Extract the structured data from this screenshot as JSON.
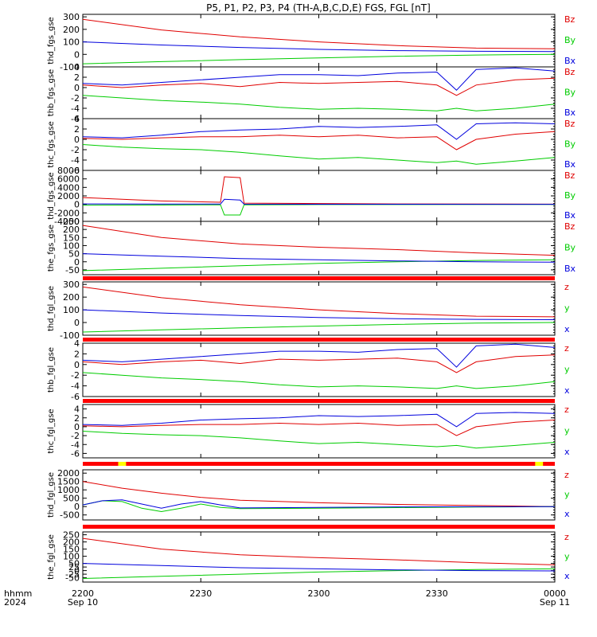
{
  "title": "P5, P1, P2, P3, P4 (TH-A,B,C,D,E) FGS, FGL [nT]",
  "colors": {
    "z": "#e00000",
    "y": "#00cc00",
    "x": "#0000dd",
    "bar_red": "#ff0000",
    "bar_yellow": "#ffff00",
    "axis": "#000000"
  },
  "time_axis": {
    "row1_label": "hhmm",
    "row2_label": "2024",
    "ticks": [
      {
        "hhmm": "2200",
        "t": 0,
        "date": "Sep 10"
      },
      {
        "hhmm": "2230",
        "t": 30,
        "date": ""
      },
      {
        "hhmm": "2300",
        "t": 60,
        "date": ""
      },
      {
        "hhmm": "2330",
        "t": 90,
        "date": ""
      },
      {
        "hhmm": "0000",
        "t": 120,
        "date": "Sep 11"
      }
    ],
    "range_minutes": [
      0,
      120
    ]
  },
  "chart_data": [
    {
      "type": "line",
      "ylabel": "thd_fgs_gse",
      "ylim": [
        -100,
        320
      ],
      "yticks": [
        -100,
        0,
        100,
        200,
        300
      ],
      "legend": [
        "Bz",
        "By",
        "Bx"
      ],
      "series": [
        {
          "name": "Bz",
          "x": [
            0,
            20,
            40,
            60,
            80,
            100,
            120
          ],
          "values": [
            280,
            195,
            140,
            100,
            70,
            50,
            45
          ]
        },
        {
          "name": "By",
          "x": [
            0,
            20,
            40,
            60,
            80,
            100,
            120
          ],
          "values": [
            -75,
            -58,
            -42,
            -28,
            -15,
            -5,
            0
          ]
        },
        {
          "name": "Bx",
          "x": [
            0,
            20,
            40,
            60,
            80,
            100,
            120
          ],
          "values": [
            100,
            75,
            55,
            40,
            30,
            25,
            22
          ]
        }
      ]
    },
    {
      "type": "line",
      "ylabel": "thb_fgs_gse",
      "ylim": [
        -6,
        4
      ],
      "yticks": [
        -6,
        -4,
        -2,
        0,
        2,
        4
      ],
      "legend": [
        "Bz",
        "By",
        "Bx"
      ],
      "series": [
        {
          "name": "Bz",
          "x": [
            0,
            10,
            20,
            30,
            40,
            50,
            60,
            70,
            80,
            90,
            95,
            100,
            110,
            120
          ],
          "values": [
            0.5,
            0,
            0.5,
            0.8,
            0.2,
            1,
            0.8,
            1,
            1.2,
            0.5,
            -1.5,
            0.5,
            1.5,
            1.8
          ]
        },
        {
          "name": "By",
          "x": [
            0,
            10,
            20,
            30,
            40,
            50,
            60,
            70,
            80,
            90,
            95,
            100,
            110,
            120
          ],
          "values": [
            -1.5,
            -2,
            -2.5,
            -2.8,
            -3.2,
            -3.8,
            -4.2,
            -4.0,
            -4.2,
            -4.5,
            -4.0,
            -4.5,
            -4.0,
            -3.2
          ]
        },
        {
          "name": "Bx",
          "x": [
            0,
            10,
            20,
            30,
            40,
            50,
            60,
            70,
            80,
            90,
            95,
            100,
            110,
            120
          ],
          "values": [
            0.8,
            0.5,
            1.0,
            1.5,
            2.0,
            2.5,
            2.5,
            2.3,
            2.8,
            3.0,
            -0.5,
            3.5,
            3.8,
            3.2
          ]
        }
      ]
    },
    {
      "type": "line",
      "ylabel": "thc_fgs_gse",
      "ylim": [
        -6,
        4
      ],
      "yticks": [
        -6,
        -4,
        -2,
        0,
        2,
        4
      ],
      "legend": [
        "Bz",
        "By",
        "Bx"
      ],
      "series": [
        {
          "name": "Bz",
          "x": [
            0,
            10,
            20,
            30,
            40,
            50,
            60,
            70,
            80,
            90,
            95,
            100,
            110,
            120
          ],
          "values": [
            0.2,
            0,
            0.3,
            0.5,
            0.5,
            0.8,
            0.5,
            0.8,
            0.3,
            0.5,
            -2.0,
            0,
            1.0,
            1.5
          ]
        },
        {
          "name": "By",
          "x": [
            0,
            10,
            20,
            30,
            40,
            50,
            60,
            70,
            80,
            90,
            95,
            100,
            110,
            120
          ],
          "values": [
            -1.0,
            -1.5,
            -1.8,
            -2.0,
            -2.5,
            -3.2,
            -3.8,
            -3.5,
            -4.0,
            -4.5,
            -4.2,
            -4.8,
            -4.2,
            -3.5
          ]
        },
        {
          "name": "Bx",
          "x": [
            0,
            10,
            20,
            30,
            40,
            50,
            60,
            70,
            80,
            90,
            95,
            100,
            110,
            120
          ],
          "values": [
            0.5,
            0.3,
            0.8,
            1.5,
            1.8,
            2.0,
            2.5,
            2.3,
            2.5,
            2.8,
            0,
            3.0,
            3.2,
            3.0
          ]
        }
      ]
    },
    {
      "type": "line",
      "ylabel": "thd_fgs_gse",
      "ylim": [
        -4000,
        8000
      ],
      "yticks": [
        -4000,
        -2000,
        0,
        2000,
        4000,
        6000,
        8000
      ],
      "legend": [
        "Bz",
        "By",
        "Bx"
      ],
      "series": [
        {
          "name": "Bz",
          "x": [
            0,
            20,
            35,
            36,
            40,
            41,
            60,
            80,
            120
          ],
          "values": [
            1600,
            800,
            500,
            6500,
            6300,
            300,
            200,
            100,
            50
          ]
        },
        {
          "name": "By",
          "x": [
            0,
            20,
            35,
            36,
            40,
            41,
            60,
            120
          ],
          "values": [
            -200,
            -150,
            -100,
            -2500,
            -2500,
            -100,
            -50,
            0
          ]
        },
        {
          "name": "Bx",
          "x": [
            0,
            20,
            35,
            36,
            40,
            41,
            60,
            120
          ],
          "values": [
            100,
            80,
            60,
            1200,
            1000,
            50,
            30,
            20
          ]
        }
      ]
    },
    {
      "type": "line",
      "ylabel": "the_fgs_gse",
      "ylim": [
        -80,
        250
      ],
      "yticks": [
        -50,
        0,
        50,
        100,
        150,
        200,
        250
      ],
      "legend": [
        "Bz",
        "By",
        "Bx"
      ],
      "series": [
        {
          "name": "Bz",
          "x": [
            0,
            20,
            40,
            60,
            80,
            100,
            120
          ],
          "values": [
            225,
            150,
            110,
            90,
            75,
            55,
            40
          ]
        },
        {
          "name": "By",
          "x": [
            0,
            20,
            40,
            60,
            80,
            100,
            120
          ],
          "values": [
            -55,
            -40,
            -25,
            -10,
            0,
            8,
            12
          ]
        },
        {
          "name": "Bx",
          "x": [
            0,
            20,
            40,
            60,
            80,
            100,
            120
          ],
          "values": [
            50,
            35,
            20,
            12,
            5,
            0,
            -2
          ]
        }
      ]
    },
    {
      "type": "line",
      "ylabel": "thd_fgl_gse",
      "ylim": [
        -100,
        320
      ],
      "yticks": [
        -100,
        0,
        100,
        200,
        300
      ],
      "legend": [
        "z",
        "y",
        "x"
      ],
      "series": [
        {
          "name": "z",
          "x": [
            0,
            20,
            40,
            60,
            80,
            100,
            120
          ],
          "values": [
            280,
            195,
            140,
            100,
            70,
            50,
            45
          ]
        },
        {
          "name": "y",
          "x": [
            0,
            20,
            40,
            60,
            80,
            100,
            120
          ],
          "values": [
            -75,
            -58,
            -42,
            -28,
            -15,
            -5,
            0
          ]
        },
        {
          "name": "x",
          "x": [
            0,
            20,
            40,
            60,
            80,
            100,
            120
          ],
          "values": [
            100,
            75,
            55,
            40,
            30,
            25,
            22
          ]
        }
      ]
    },
    {
      "type": "line",
      "ylabel": "thb_fgl_gse",
      "ylim": [
        -6,
        4
      ],
      "yticks": [
        -6,
        -4,
        -2,
        0,
        2,
        4
      ],
      "legend": [
        "z",
        "y",
        "x"
      ],
      "series": [
        {
          "name": "z",
          "x": [
            0,
            10,
            20,
            30,
            40,
            50,
            60,
            70,
            80,
            90,
            95,
            100,
            110,
            120
          ],
          "values": [
            0.5,
            0,
            0.5,
            0.8,
            0.2,
            1,
            0.8,
            1,
            1.2,
            0.5,
            -1.5,
            0.5,
            1.5,
            1.8
          ]
        },
        {
          "name": "y",
          "x": [
            0,
            10,
            20,
            30,
            40,
            50,
            60,
            70,
            80,
            90,
            95,
            100,
            110,
            120
          ],
          "values": [
            -1.5,
            -2,
            -2.5,
            -2.8,
            -3.2,
            -3.8,
            -4.2,
            -4.0,
            -4.2,
            -4.5,
            -4.0,
            -4.5,
            -4.0,
            -3.2
          ]
        },
        {
          "name": "x",
          "x": [
            0,
            10,
            20,
            30,
            40,
            50,
            60,
            70,
            80,
            90,
            95,
            100,
            110,
            120
          ],
          "values": [
            0.8,
            0.5,
            1.0,
            1.5,
            2.0,
            2.5,
            2.5,
            2.3,
            2.8,
            3.0,
            -0.5,
            3.5,
            3.8,
            3.2
          ]
        }
      ]
    },
    {
      "type": "line",
      "ylabel": "thc_fgl_gse",
      "ylim": [
        -7,
        5
      ],
      "yticks": [
        -6,
        -4,
        -2,
        0,
        2,
        4
      ],
      "legend": [
        "z",
        "y",
        "x"
      ],
      "series": [
        {
          "name": "z",
          "x": [
            0,
            10,
            20,
            30,
            40,
            50,
            60,
            70,
            80,
            90,
            95,
            100,
            110,
            120
          ],
          "values": [
            0.2,
            0,
            0.3,
            0.5,
            0.5,
            0.8,
            0.5,
            0.8,
            0.3,
            0.5,
            -2.0,
            0,
            1.0,
            1.5
          ]
        },
        {
          "name": "y",
          "x": [
            0,
            10,
            20,
            30,
            40,
            50,
            60,
            70,
            80,
            90,
            95,
            100,
            110,
            120
          ],
          "values": [
            -1.0,
            -1.5,
            -1.8,
            -2.0,
            -2.5,
            -3.2,
            -3.8,
            -3.5,
            -4.0,
            -4.5,
            -4.2,
            -4.8,
            -4.2,
            -3.5
          ]
        },
        {
          "name": "x",
          "x": [
            0,
            10,
            20,
            30,
            40,
            50,
            60,
            70,
            80,
            90,
            95,
            100,
            110,
            120
          ],
          "values": [
            0.5,
            0.3,
            0.8,
            1.5,
            1.8,
            2.0,
            2.5,
            2.3,
            2.5,
            2.8,
            0,
            3.0,
            3.2,
            3.0
          ]
        }
      ]
    },
    {
      "type": "line",
      "ylabel": "thd_fgl_gse",
      "ylim": [
        -800,
        2200
      ],
      "yticks": [
        -500,
        0,
        500,
        1000,
        1500,
        2000
      ],
      "legend": [
        "z",
        "y",
        "x"
      ],
      "series": [
        {
          "name": "z",
          "x": [
            0,
            10,
            20,
            30,
            40,
            60,
            80,
            100,
            120
          ],
          "values": [
            1500,
            1100,
            800,
            550,
            380,
            230,
            130,
            60,
            0
          ]
        },
        {
          "name": "y",
          "x": [
            0,
            5,
            10,
            15,
            20,
            25,
            30,
            35,
            40,
            60,
            80,
            100,
            120
          ],
          "values": [
            100,
            350,
            300,
            -100,
            -300,
            -100,
            150,
            -50,
            -120,
            -100,
            -60,
            -30,
            0
          ]
        },
        {
          "name": "x",
          "x": [
            0,
            5,
            10,
            15,
            20,
            25,
            30,
            35,
            40,
            60,
            80,
            100,
            120
          ],
          "values": [
            100,
            350,
            400,
            150,
            -100,
            150,
            300,
            100,
            -80,
            -50,
            -20,
            -10,
            0
          ]
        }
      ]
    },
    {
      "type": "line",
      "ylabel": "the_fgl_gse",
      "ylim": [
        -80,
        270
      ],
      "yticks": [
        -50,
        -25,
        0,
        25,
        50,
        100,
        150,
        200,
        250
      ],
      "legend": [
        "z",
        "y",
        "x"
      ],
      "series": [
        {
          "name": "z",
          "x": [
            0,
            20,
            40,
            60,
            80,
            100,
            120
          ],
          "values": [
            225,
            150,
            110,
            90,
            75,
            55,
            40
          ]
        },
        {
          "name": "y",
          "x": [
            0,
            20,
            40,
            60,
            80,
            100,
            120
          ],
          "values": [
            -55,
            -40,
            -25,
            -10,
            0,
            8,
            12
          ]
        },
        {
          "name": "x",
          "x": [
            0,
            20,
            40,
            60,
            80,
            100,
            120
          ],
          "values": [
            50,
            35,
            20,
            12,
            5,
            0,
            -2
          ]
        }
      ]
    }
  ],
  "flag_bars": [
    {
      "after_panel": 4,
      "segments": [
        {
          "from": 0,
          "to": 120,
          "color": "bar_red"
        }
      ]
    },
    {
      "after_panel": 5,
      "segments": [
        {
          "from": 0,
          "to": 120,
          "color": "bar_red"
        }
      ]
    },
    {
      "after_panel": 6,
      "segments": [
        {
          "from": 0,
          "to": 120,
          "color": "bar_red"
        }
      ]
    },
    {
      "after_panel": 7,
      "segments": [
        {
          "from": 0,
          "to": 120,
          "color": "bar_red"
        },
        {
          "from": 9,
          "to": 11,
          "color": "bar_yellow"
        },
        {
          "from": 115,
          "to": 117,
          "color": "bar_yellow"
        }
      ]
    },
    {
      "after_panel": 8,
      "segments": [
        {
          "from": 0,
          "to": 120,
          "color": "bar_red"
        }
      ]
    }
  ]
}
